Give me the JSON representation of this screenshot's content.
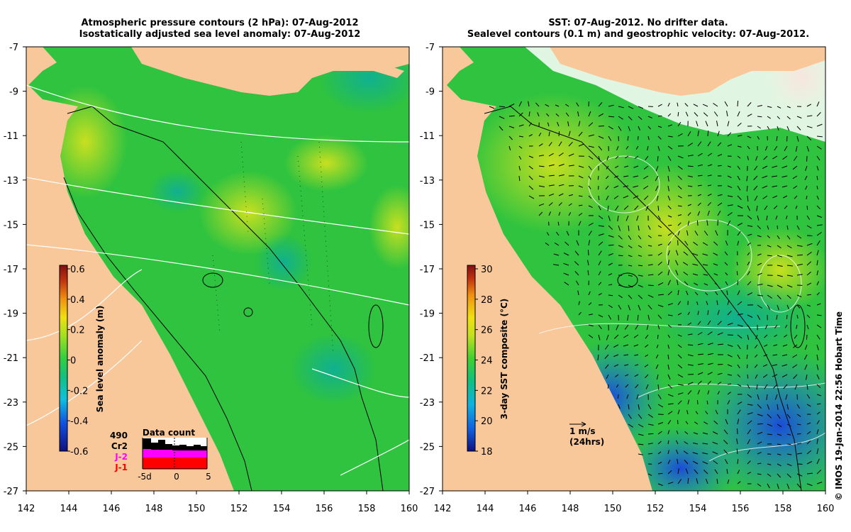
{
  "left_panel": {
    "title_line1": "Atmospheric pressure contours (2 hPa): 07-Aug-2012",
    "title_line2": "Isostatically adjusted sea level anomaly: 07-Aug-2012",
    "colorbar": {
      "label": "Sea level anomaly (m)",
      "ticks": [
        "0.6",
        "0.4",
        "0.2",
        "0",
        "-0.2",
        "-0.4",
        "-0.6"
      ]
    },
    "data_count": {
      "title": "Data count",
      "satellites": [
        "490",
        "Cr2",
        "J-2",
        "J-1"
      ],
      "sat_colors": [
        "#000000",
        "#000000",
        "#ff00ff",
        "#ff0000"
      ],
      "x_ticks": [
        "-5d",
        "0",
        "5"
      ]
    }
  },
  "right_panel": {
    "title_line1": "SST: 07-Aug-2012. No drifter data.",
    "title_line2": "Sealevel contours (0.1 m) and geostrophic velocity: 07-Aug-2012.",
    "colorbar": {
      "label": "3-day SST composite (°C)",
      "ticks": [
        "30",
        "28",
        "26",
        "24",
        "22",
        "20",
        "18"
      ]
    },
    "velocity_scale": {
      "speed": "1 m/s",
      "duration": "(24hrs)"
    }
  },
  "axes": {
    "lat_ticks": [
      "-7",
      "-9",
      "-11",
      "-13",
      "-15",
      "-17",
      "-19",
      "-21",
      "-23",
      "-25",
      "-27"
    ],
    "lon_ticks": [
      "142",
      "144",
      "146",
      "148",
      "150",
      "152",
      "154",
      "156",
      "158",
      "160"
    ]
  },
  "credit": "© IMOS 19-Jan-2014 22:56 Hobart Time",
  "colors": {
    "land": "#f8c89a",
    "ocean_green": "#2fc33f",
    "deep_blue": "#1a2a9a",
    "background": "#ffffff"
  }
}
